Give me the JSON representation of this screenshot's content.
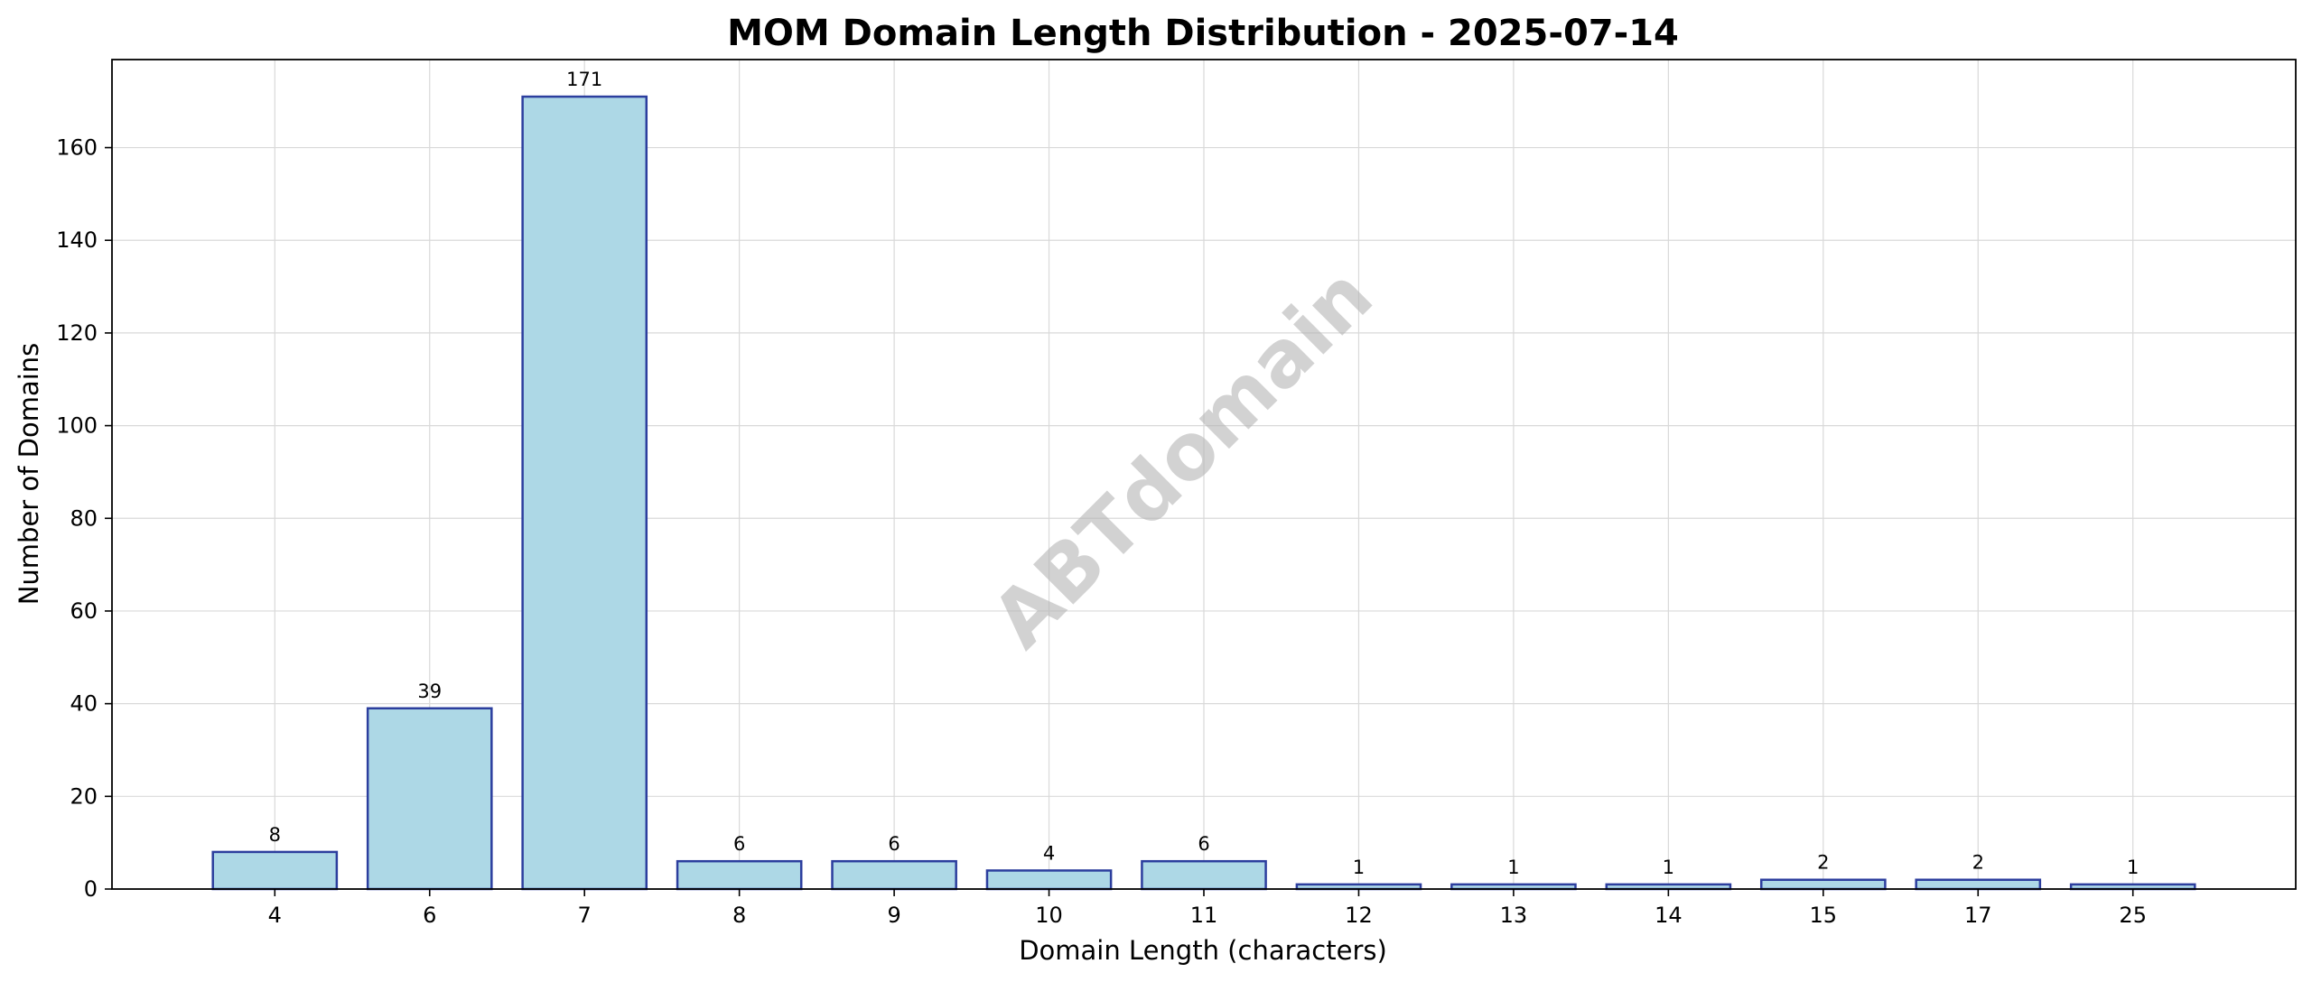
{
  "chart_data": {
    "type": "bar",
    "title": "MOM Domain Length Distribution - 2025-07-14",
    "xlabel": "Domain Length (characters)",
    "ylabel": "Number of Domains",
    "categories": [
      "4",
      "6",
      "7",
      "8",
      "9",
      "10",
      "11",
      "12",
      "13",
      "14",
      "15",
      "17",
      "25"
    ],
    "values": [
      8,
      39,
      171,
      6,
      6,
      4,
      6,
      1,
      1,
      1,
      2,
      2,
      1
    ],
    "data_labels": [
      "8",
      "39",
      "171",
      "6",
      "6",
      "4",
      "6",
      "1",
      "1",
      "1",
      "2",
      "2",
      "1"
    ],
    "ylim": [
      0,
      179
    ],
    "yticks": [
      0,
      20,
      40,
      60,
      80,
      100,
      120,
      140,
      160
    ],
    "grid": true,
    "bar_color": "#add8e6",
    "bar_edge_color": "#2c3e9e",
    "watermark": "ABTdomain"
  }
}
